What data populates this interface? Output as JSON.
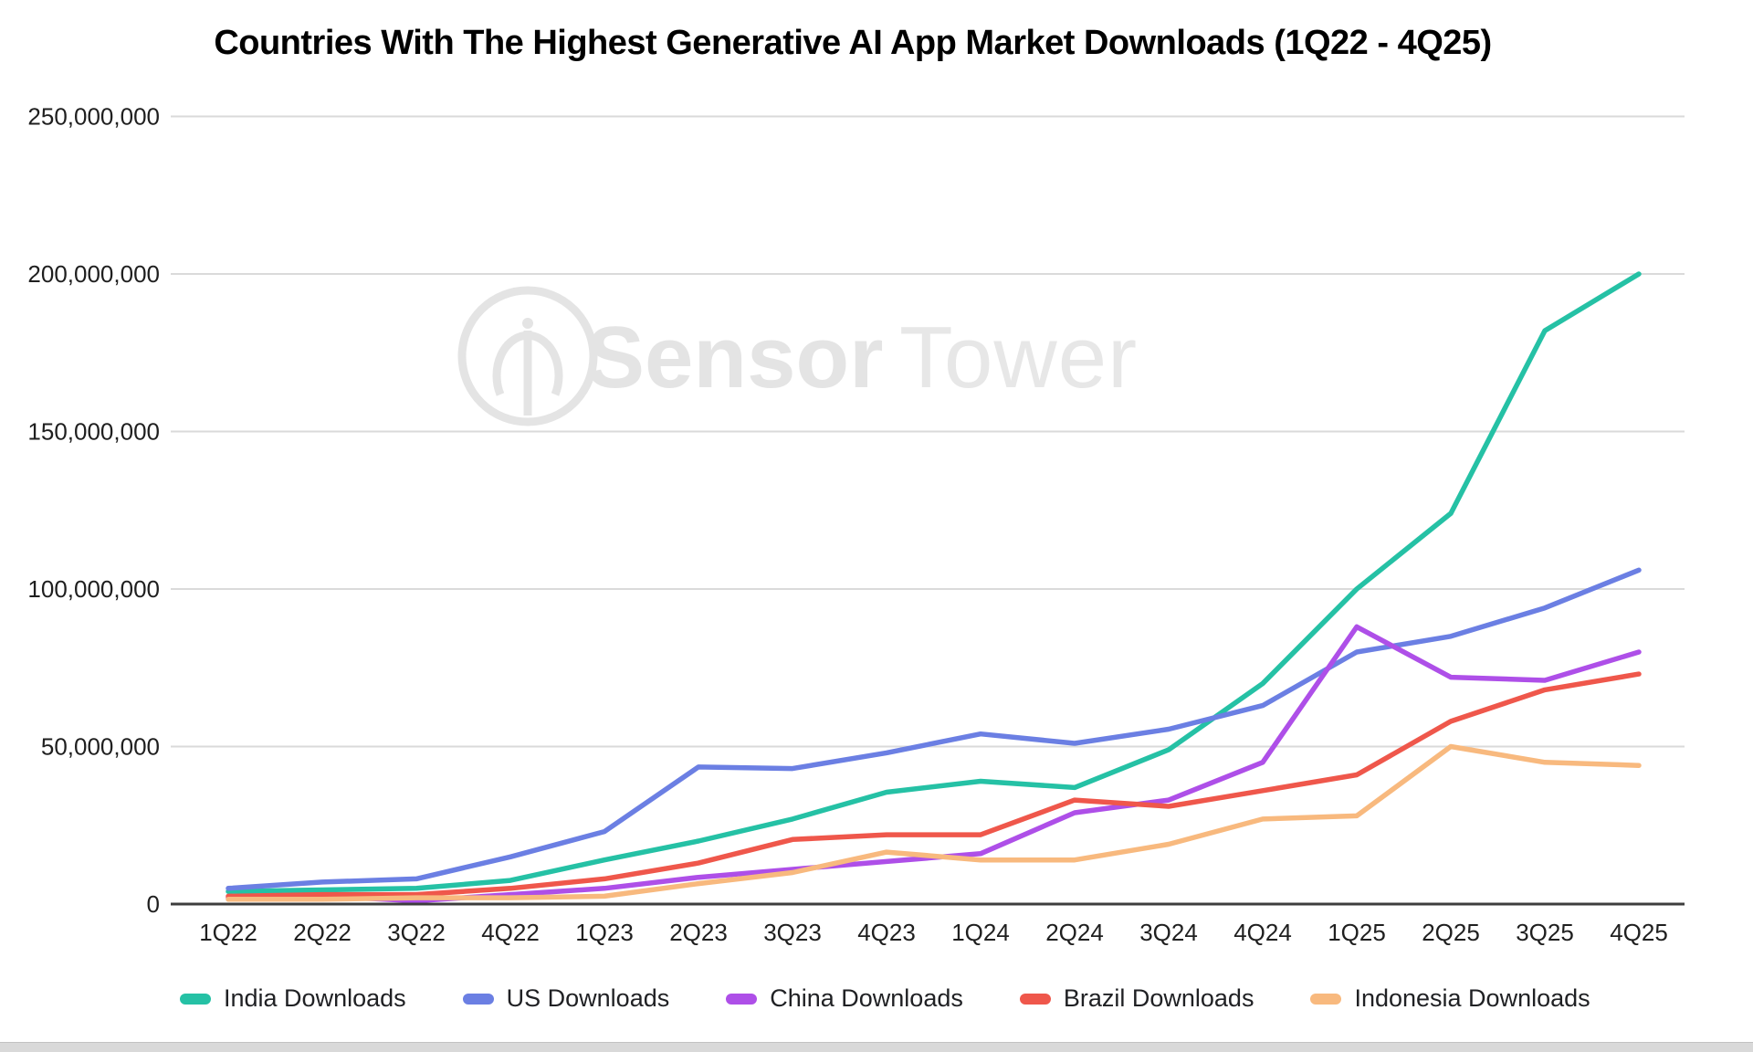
{
  "title": "Countries With The Highest Generative AI App Market Downloads (1Q22 - 4Q25)",
  "watermark": {
    "logo": "sensor-tower-logo",
    "bold_text": "Sensor",
    "light_text": "Tower",
    "color": "#e4e4e4"
  },
  "colors": {
    "india": "#25c1a5",
    "us": "#6b7fe3",
    "china": "#ae4fe8",
    "brazil": "#ef574b",
    "indonesia": "#f8b97e",
    "gridline": "#dadada",
    "axis_line": "#3d3d3d",
    "tick_label": "#1f1f1f"
  },
  "chart_data": {
    "type": "line",
    "title": "Countries With The Highest Generative AI App Market Downloads (1Q22 - 4Q25)",
    "x": [
      "1Q22",
      "2Q22",
      "3Q22",
      "4Q22",
      "1Q23",
      "2Q23",
      "3Q23",
      "4Q23",
      "1Q24",
      "2Q24",
      "3Q24",
      "4Q24",
      "1Q25",
      "2Q25",
      "3Q25",
      "4Q25"
    ],
    "series": [
      {
        "name": "India Downloads",
        "color": "#25c1a5",
        "values": [
          4000000,
          4500000,
          5000000,
          7500000,
          14000000,
          20000000,
          27000000,
          35500000,
          39000000,
          37000000,
          49000000,
          70000000,
          100000000,
          124000000,
          182000000,
          200000000
        ]
      },
      {
        "name": "US Downloads",
        "color": "#6b7fe3",
        "values": [
          5000000,
          7000000,
          8000000,
          15000000,
          23000000,
          43500000,
          43000000,
          48000000,
          54000000,
          51000000,
          55500000,
          63000000,
          80000000,
          85000000,
          94000000,
          106000000
        ]
      },
      {
        "name": "China Downloads",
        "color": "#ae4fe8",
        "values": [
          2000000,
          2500000,
          1000000,
          3000000,
          5000000,
          8500000,
          11000000,
          13500000,
          16000000,
          29000000,
          33000000,
          45000000,
          88000000,
          72000000,
          71000000,
          80000000
        ]
      },
      {
        "name": "Brazil Downloads",
        "color": "#ef574b",
        "values": [
          2500000,
          3000000,
          3000000,
          5000000,
          8000000,
          13000000,
          20500000,
          22000000,
          22000000,
          33000000,
          31000000,
          36000000,
          41000000,
          58000000,
          68000000,
          73000000
        ]
      },
      {
        "name": "Indonesia Downloads",
        "color": "#f8b97e",
        "values": [
          1500000,
          1500000,
          2000000,
          2000000,
          2500000,
          6500000,
          10000000,
          16500000,
          14000000,
          14000000,
          19000000,
          27000000,
          28000000,
          50000000,
          45000000,
          44000000
        ]
      }
    ],
    "xlabel": "",
    "ylabel": "",
    "ylim": [
      0,
      250000000
    ],
    "ytick_step": 50000000,
    "ytick_labels": [
      "0",
      "50,000,000",
      "100,000,000",
      "150,000,000",
      "200,000,000",
      "250,000,000"
    ],
    "grid": true,
    "legend_position": "bottom"
  }
}
